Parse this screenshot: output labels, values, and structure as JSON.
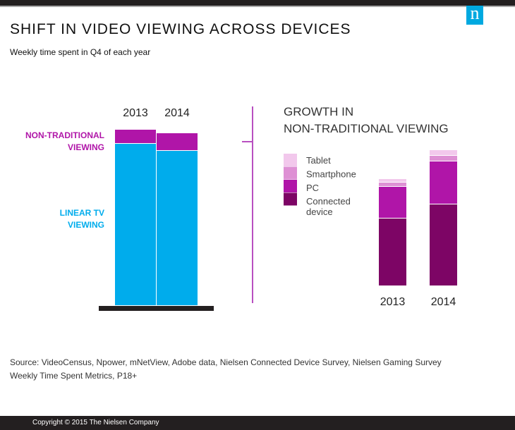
{
  "header": {
    "title": "SHIFT IN VIDEO VIEWING ACROSS DEVICES",
    "subtitle": "Weekly time spent in Q4 of each year",
    "logo": "n"
  },
  "colors": {
    "linear": "#00acec",
    "nontrad": "#b015a8",
    "tablet": "#f2c8ec",
    "smartphone": "#de90d4",
    "pc": "#b015a8",
    "connected": "#7d0565",
    "accent_line": "#b84fc0"
  },
  "chart_data": [
    {
      "type": "bar",
      "stacked": true,
      "categories": [
        "2013",
        "2014"
      ],
      "series": [
        {
          "name": "LINEAR TV VIEWING",
          "values": [
            230,
            220
          ]
        },
        {
          "name": "NON-TRADITIONAL VIEWING",
          "values": [
            20,
            25
          ]
        }
      ],
      "labels": {
        "nontrad": [
          "NON-TRADITIONAL",
          "VIEWING"
        ],
        "linear": [
          "LINEAR TV",
          "VIEWING"
        ]
      },
      "value_scale": "relative, unlabeled",
      "ylim": [
        0,
        250
      ]
    },
    {
      "type": "bar",
      "stacked": true,
      "title": [
        "GROWTH IN",
        "NON-TRADITIONAL VIEWING"
      ],
      "categories": [
        "2013",
        "2014"
      ],
      "series": [
        {
          "name": "Connected device",
          "values": [
            96,
            116
          ]
        },
        {
          "name": "PC",
          "values": [
            45,
            61
          ]
        },
        {
          "name": "Smartphone",
          "values": [
            6,
            8
          ]
        },
        {
          "name": "Tablet",
          "values": [
            5,
            8
          ]
        }
      ],
      "legend": [
        "Tablet",
        "Smartphone",
        "PC",
        "Connected device"
      ],
      "legend_placement": "left",
      "value_scale": "relative, unlabeled",
      "ylim": [
        0,
        193
      ]
    }
  ],
  "source": [
    "Source: VideoCensus, Npower, mNetView, Adobe data, Nielsen Connected Device Survey, Nielsen Gaming Survey",
    "Weekly Time Spent Metrics, P18+"
  ],
  "footer": {
    "copyright": "Copyright © 2015 The Nielsen Company"
  }
}
